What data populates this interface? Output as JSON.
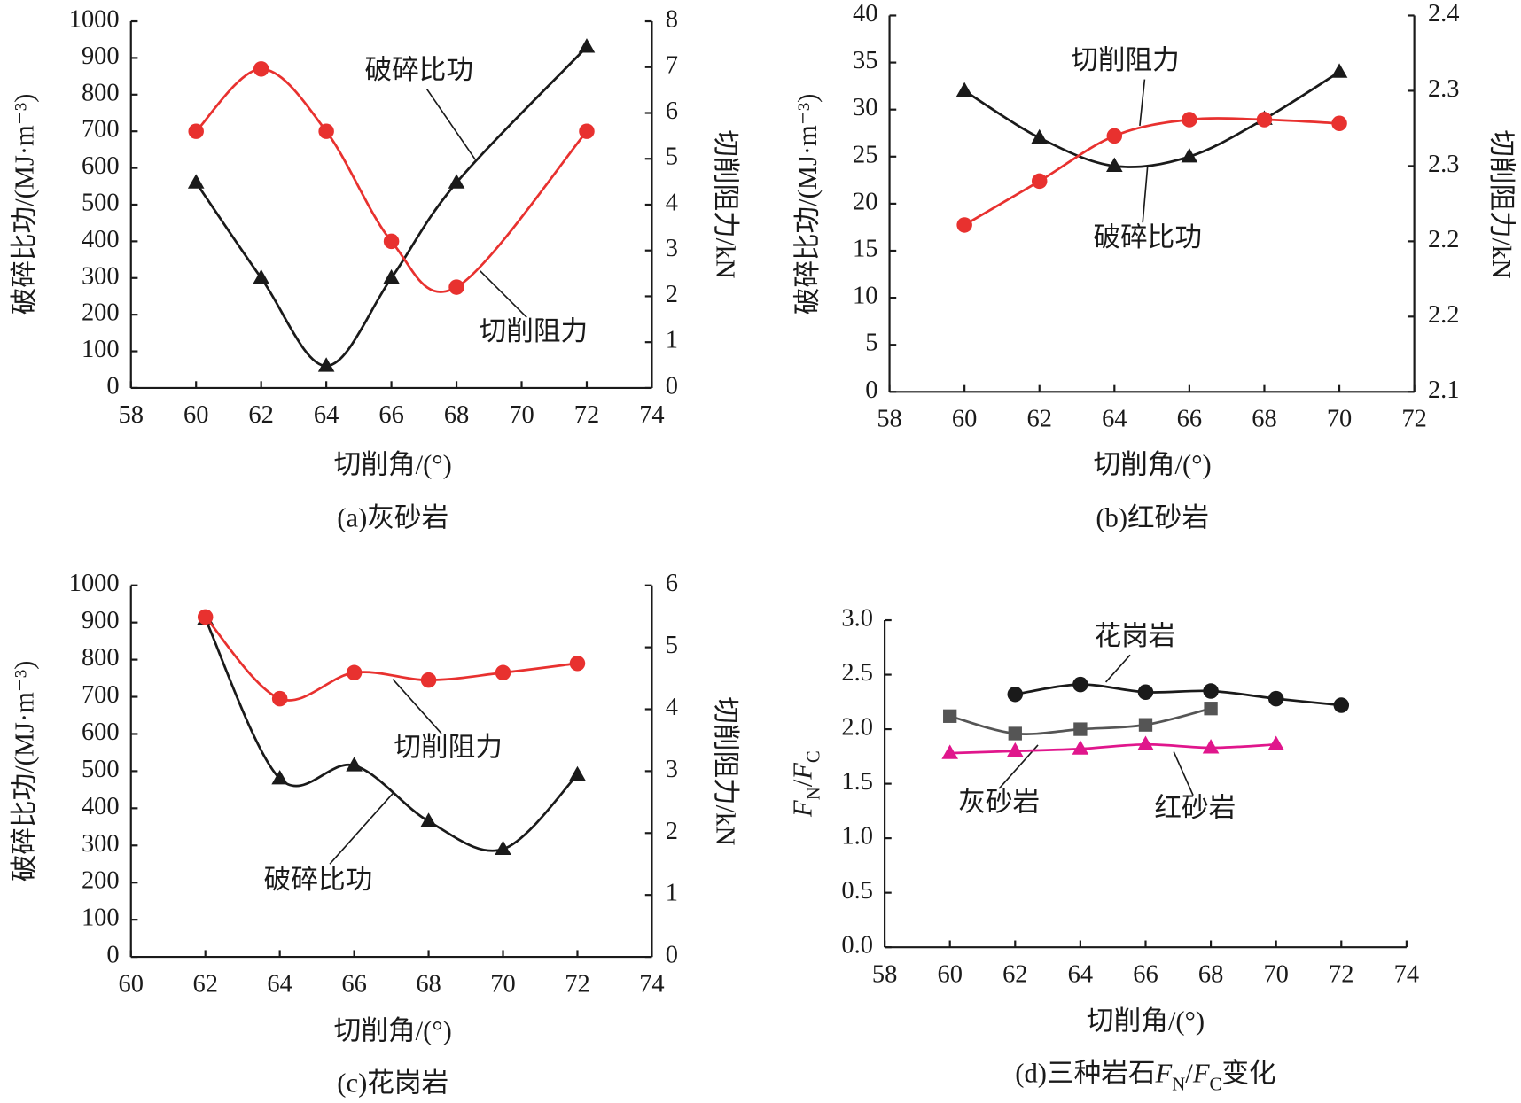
{
  "chart_data": [
    {
      "type": "line",
      "xlabel": "切削角/(°)",
      "ylabel": "破碎比功/(MJ·m⁻³)",
      "y2label": "切削阻力/kN",
      "caption": "(a)灰砂岩",
      "xlim": [
        58,
        74
      ],
      "xticks": [
        58,
        60,
        62,
        64,
        66,
        68,
        70,
        72,
        74
      ],
      "ylim": [
        0,
        1000
      ],
      "yticks": [
        0,
        100,
        200,
        300,
        400,
        500,
        600,
        700,
        800,
        900,
        1000
      ],
      "y2lim": [
        0,
        8
      ],
      "y2ticks": [
        0,
        1,
        2,
        3,
        4,
        5,
        6,
        7,
        8
      ],
      "series": [
        {
          "name": "破碎比功",
          "color": "#1a1a1a",
          "marker": "triangle",
          "x": [
            60,
            62,
            64,
            66,
            68,
            72
          ],
          "values": [
            560,
            300,
            60,
            300,
            560,
            930
          ]
        },
        {
          "name": "切削阻力",
          "color": "#e8312f",
          "marker": "circle",
          "axis": "y2",
          "x": [
            60,
            62,
            64,
            66,
            68,
            72
          ],
          "values": [
            5.6,
            6.96,
            5.6,
            3.2,
            2.2,
            5.6
          ]
        }
      ]
    },
    {
      "type": "line",
      "xlabel": "切削角/(°)",
      "ylabel": "破碎比功/(MJ·m⁻³)",
      "y2label": "切削阻力/kN",
      "caption": "(b)红砂岩",
      "xlim": [
        58,
        72
      ],
      "xticks": [
        58,
        60,
        62,
        64,
        66,
        68,
        70,
        72
      ],
      "ylim": [
        0,
        40
      ],
      "yticks": [
        0,
        5,
        10,
        15,
        20,
        25,
        30,
        35,
        40
      ],
      "y2lim": [
        2.1,
        2.4
      ],
      "y2ticks": [
        2.1,
        {
          "value": 2.16,
          "label": "2.2"
        },
        {
          "value": 2.22,
          "label": "2.2"
        },
        {
          "value": 2.28,
          "label": "2.3"
        },
        {
          "value": 2.34,
          "label": "2.3"
        },
        2.4
      ],
      "series": [
        {
          "name": "破碎比功",
          "color": "#1a1a1a",
          "marker": "triangle",
          "x": [
            60,
            62,
            64,
            66,
            68,
            70
          ],
          "values": [
            32,
            27,
            24,
            25,
            29,
            34
          ]
        },
        {
          "name": "切削阻力",
          "color": "#e8312f",
          "marker": "circle",
          "axis": "y2",
          "x": [
            60,
            62,
            64,
            66,
            68,
            70
          ],
          "values": [
            2.233,
            2.268,
            2.304,
            2.317,
            2.317,
            2.314
          ]
        }
      ]
    },
    {
      "type": "line",
      "xlabel": "切削角/(°)",
      "ylabel": "破碎比功/(MJ·m⁻³)",
      "y2label": "切削阻力/kN",
      "caption": "(c)花岗岩",
      "xlim": [
        60,
        74
      ],
      "xticks": [
        60,
        62,
        64,
        66,
        68,
        70,
        72,
        74
      ],
      "ylim": [
        0,
        1000
      ],
      "yticks": [
        0,
        100,
        200,
        300,
        400,
        500,
        600,
        700,
        800,
        900,
        1000
      ],
      "y2lim": [
        0,
        6
      ],
      "y2ticks": [
        0,
        1,
        2,
        3,
        4,
        5,
        6
      ],
      "series": [
        {
          "name": "破碎比功",
          "color": "#1a1a1a",
          "marker": "triangle",
          "x": [
            62,
            64,
            66,
            68,
            70,
            72
          ],
          "values": [
            910,
            480,
            515,
            365,
            290,
            490
          ]
        },
        {
          "name": "切削阻力",
          "color": "#e8312f",
          "marker": "circle",
          "axis": "y2",
          "x": [
            62,
            64,
            66,
            68,
            70,
            72
          ],
          "values": [
            5.49,
            4.17,
            4.59,
            4.47,
            4.59,
            4.74
          ]
        }
      ]
    },
    {
      "type": "line",
      "xlabel": "切削角/(°)",
      "ylabel": [
        {
          "text": "F",
          "italic": true
        },
        {
          "text": "N",
          "sub": true
        },
        {
          "text": "/"
        },
        {
          "text": "F",
          "italic": true
        },
        {
          "text": "C",
          "sub": true
        }
      ],
      "caption": [
        {
          "text": "(d)三种岩石"
        },
        {
          "text": "F",
          "italic": true
        },
        {
          "text": "N",
          "sub": true
        },
        {
          "text": "/"
        },
        {
          "text": "F",
          "italic": true
        },
        {
          "text": "C",
          "sub": true
        },
        {
          "text": "变化"
        }
      ],
      "xlim": [
        58,
        74
      ],
      "xticks": [
        58,
        60,
        62,
        64,
        66,
        68,
        70,
        72,
        74
      ],
      "ylim": [
        0,
        3
      ],
      "yticks": [
        {
          "value": 0,
          "label": "0.0"
        },
        0.5,
        {
          "value": 1,
          "label": "1.0"
        },
        1.5,
        {
          "value": 2,
          "label": "2.0"
        },
        2.5,
        {
          "value": 3,
          "label": "3.0"
        }
      ],
      "series": [
        {
          "name": "花岗岩",
          "color": "#1a1a1a",
          "marker": "circle",
          "x": [
            62,
            64,
            66,
            68,
            70,
            72
          ],
          "values": [
            2.32,
            2.41,
            2.34,
            2.35,
            2.28,
            2.22
          ]
        },
        {
          "name": "灰砂岩",
          "color": "#555555",
          "marker": "square",
          "x": [
            60,
            62,
            64,
            66,
            68
          ],
          "values": [
            2.12,
            1.96,
            2.0,
            2.04,
            2.19
          ]
        },
        {
          "name": "红砂岩",
          "color": "#e0168c",
          "marker": "triangle",
          "x": [
            60,
            62,
            64,
            66,
            68,
            70
          ],
          "values": [
            1.78,
            1.8,
            1.82,
            1.86,
            1.83,
            1.86
          ]
        }
      ]
    }
  ]
}
